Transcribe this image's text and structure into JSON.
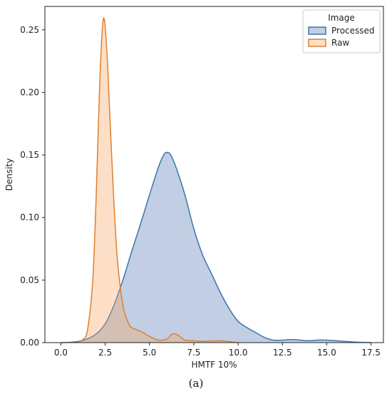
{
  "chart_data": {
    "type": "area",
    "xlabel": "HMTF 10%",
    "ylabel": "Density",
    "xlim": [
      -0.9,
      18.2
    ],
    "ylim": [
      0,
      0.2687
    ],
    "x_ticks": [
      0.0,
      2.5,
      5.0,
      7.5,
      10.0,
      12.5,
      15.0,
      17.5
    ],
    "x_tick_labels": [
      "0.0",
      "2.5",
      "5.0",
      "7.5",
      "10.0",
      "12.5",
      "15.0",
      "17.5"
    ],
    "y_ticks": [
      0.0,
      0.05,
      0.1,
      0.15,
      0.2,
      0.25
    ],
    "y_tick_labels": [
      "0.00",
      "0.05",
      "0.10",
      "0.15",
      "0.20",
      "0.25"
    ],
    "grid": false,
    "legend": {
      "title": "Image",
      "placement": "top-right"
    },
    "series": [
      {
        "name": "Processed",
        "line_color": "#3a76b0",
        "fill_color": "#4c72b0",
        "x": [
          0.0,
          0.5,
          1.0,
          1.5,
          2.0,
          2.5,
          3.0,
          3.5,
          4.0,
          4.5,
          5.0,
          5.5,
          5.8,
          6.0,
          6.2,
          6.5,
          7.0,
          7.5,
          8.0,
          8.5,
          9.0,
          9.5,
          10.0,
          10.5,
          11.0,
          11.5,
          12.0,
          12.5,
          13.0,
          13.5,
          14.0,
          14.5,
          15.0,
          15.5,
          16.0,
          16.5,
          17.0,
          17.5
        ],
        "y": [
          0.0,
          0.0002,
          0.001,
          0.003,
          0.007,
          0.015,
          0.03,
          0.05,
          0.073,
          0.095,
          0.118,
          0.14,
          0.15,
          0.152,
          0.15,
          0.14,
          0.118,
          0.091,
          0.07,
          0.055,
          0.04,
          0.027,
          0.017,
          0.012,
          0.008,
          0.004,
          0.002,
          0.002,
          0.0025,
          0.002,
          0.0015,
          0.002,
          0.002,
          0.0015,
          0.001,
          0.0005,
          0.0002,
          0.0
        ]
      },
      {
        "name": "Raw",
        "line_color": "#e07f2e",
        "fill_color": "#f5a25d",
        "x": [
          0.8,
          1.2,
          1.5,
          1.8,
          2.0,
          2.2,
          2.4,
          2.6,
          2.8,
          3.0,
          3.2,
          3.5,
          3.8,
          4.0,
          4.5,
          5.0,
          5.5,
          6.0,
          6.3,
          6.6,
          7.0,
          7.5,
          8.0,
          8.5,
          9.0,
          9.5,
          10.0
        ],
        "y": [
          0.0,
          0.002,
          0.01,
          0.05,
          0.12,
          0.21,
          0.259,
          0.232,
          0.17,
          0.11,
          0.065,
          0.03,
          0.016,
          0.012,
          0.009,
          0.005,
          0.002,
          0.003,
          0.007,
          0.006,
          0.002,
          0.0015,
          0.001,
          0.0012,
          0.0015,
          0.0008,
          0.0
        ]
      }
    ]
  },
  "caption": "(a)"
}
